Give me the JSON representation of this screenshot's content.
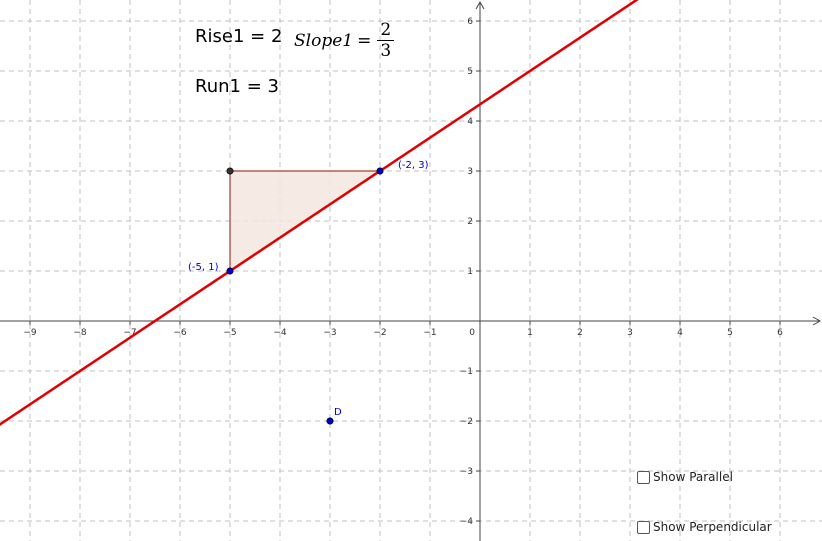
{
  "labels": {
    "rise": "Rise1 = 2",
    "run": "Run1 = 3",
    "slope_name": "Slope1",
    "slope_num": "2",
    "slope_den": "3"
  },
  "points": [
    {
      "name": "point-a",
      "label": "(-5, 1)",
      "x": -5,
      "y": 1,
      "color": "#0000cc"
    },
    {
      "name": "point-b",
      "label": "(-2, 3)",
      "x": -2,
      "y": 3,
      "color": "#0000cc"
    },
    {
      "name": "point-c",
      "label": "",
      "x": -5,
      "y": 3,
      "color": "#333333"
    },
    {
      "name": "point-d",
      "label": "D",
      "x": -3,
      "y": -2,
      "color": "#0000cc"
    }
  ],
  "line": {
    "slope_num": 2,
    "slope_den": 3,
    "through": [
      -5,
      1
    ],
    "color": "#e00000"
  },
  "triangle": {
    "vertices": [
      [
        -5,
        1
      ],
      [
        -2,
        3
      ],
      [
        -5,
        3
      ]
    ],
    "fill": "#f5e6e0",
    "stroke": "#a04030"
  },
  "axes": {
    "x_ticks": [
      -9,
      -8,
      -7,
      -6,
      -5,
      -4,
      -3,
      -2,
      -1,
      1,
      2,
      3,
      4,
      5,
      6
    ],
    "y_ticks": [
      6,
      5,
      4,
      3,
      2,
      1,
      -1,
      -2,
      -3,
      -4
    ],
    "origin_label": "0",
    "x_range": [
      -9.6,
      6.8
    ],
    "y_range": [
      -4.3,
      6.4
    ]
  },
  "controls": {
    "show_parallel": "Show Parallel",
    "show_perpendicular": "Show Perpendicular"
  }
}
